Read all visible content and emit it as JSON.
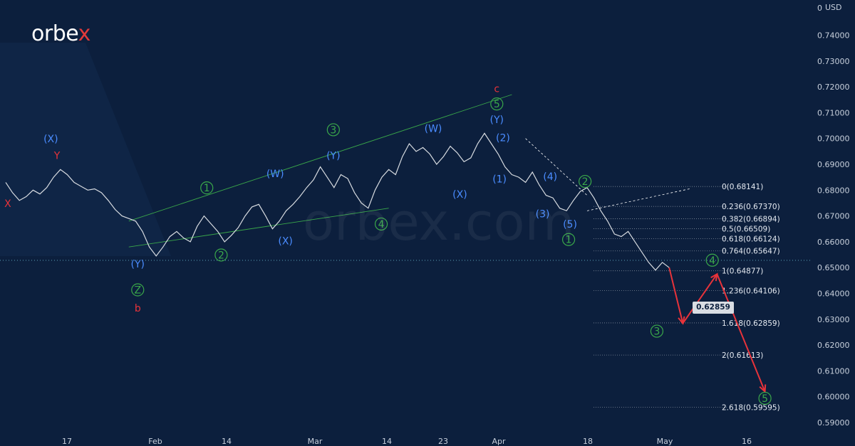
{
  "logo": {
    "prefix": "orbe",
    "accent": "x",
    "accent_color": "#e23a3a"
  },
  "watermark": "orbex.com",
  "price_tag": "0.62859",
  "chart_data": {
    "type": "line",
    "currency": "USD",
    "y_top_label": "0",
    "ylim": [
      0.585,
      0.75
    ],
    "y_ticks": [
      "0.74000",
      "0.73000",
      "0.72000",
      "0.71000",
      "0.70000",
      "0.69000",
      "0.68000",
      "0.67000",
      "0.66000",
      "0.65000",
      "0.64000",
      "0.63000",
      "0.62000",
      "0.61000",
      "0.60000",
      "0.59000"
    ],
    "x_ticks": [
      "17",
      "Feb",
      "14",
      "Mar",
      "14",
      "23",
      "Apr",
      "18",
      "May",
      "16"
    ],
    "current_price_line": 0.6528,
    "fibonacci_levels": [
      {
        "label": "0(0.68141)",
        "value": 0.68141
      },
      {
        "label": "0.236(0.67370)",
        "value": 0.6737
      },
      {
        "label": "0.382(0.66894)",
        "value": 0.66894
      },
      {
        "label": "0.5(0.66509)",
        "value": 0.66509
      },
      {
        "label": "0.618(0.66124)",
        "value": 0.66124
      },
      {
        "label": "0.764(0.65647)",
        "value": 0.65647
      },
      {
        "label": "1(0.64877)",
        "value": 0.64877
      },
      {
        "label": "1.236(0.64106)",
        "value": 0.64106
      },
      {
        "label": "1.618(0.62859)",
        "value": 0.62859
      },
      {
        "label": "2(0.61613)",
        "value": 0.61613
      },
      {
        "label": "2.618(0.59595)",
        "value": 0.59595
      }
    ],
    "price_path": [
      [
        0,
        0.683
      ],
      [
        1,
        0.679
      ],
      [
        2,
        0.676
      ],
      [
        3,
        0.6775
      ],
      [
        4,
        0.68
      ],
      [
        5,
        0.6785
      ],
      [
        6,
        0.681
      ],
      [
        7,
        0.685
      ],
      [
        8,
        0.688
      ],
      [
        9,
        0.686
      ],
      [
        10,
        0.683
      ],
      [
        11,
        0.6815
      ],
      [
        12,
        0.68
      ],
      [
        13,
        0.6805
      ],
      [
        14,
        0.679
      ],
      [
        15,
        0.676
      ],
      [
        16,
        0.6725
      ],
      [
        17,
        0.67
      ],
      [
        18,
        0.669
      ],
      [
        19,
        0.668
      ],
      [
        20,
        0.664
      ],
      [
        21,
        0.658
      ],
      [
        22,
        0.6545
      ],
      [
        23,
        0.658
      ],
      [
        24,
        0.662
      ],
      [
        25,
        0.664
      ],
      [
        26,
        0.6615
      ],
      [
        27,
        0.66
      ],
      [
        28,
        0.666
      ],
      [
        29,
        0.67
      ],
      [
        30,
        0.667
      ],
      [
        31,
        0.664
      ],
      [
        32,
        0.66
      ],
      [
        33,
        0.6625
      ],
      [
        34,
        0.6655
      ],
      [
        35,
        0.67
      ],
      [
        36,
        0.6735
      ],
      [
        37,
        0.6745
      ],
      [
        38,
        0.67
      ],
      [
        39,
        0.665
      ],
      [
        40,
        0.668
      ],
      [
        41,
        0.672
      ],
      [
        42,
        0.6745
      ],
      [
        43,
        0.6775
      ],
      [
        44,
        0.681
      ],
      [
        45,
        0.684
      ],
      [
        46,
        0.689
      ],
      [
        47,
        0.685
      ],
      [
        48,
        0.681
      ],
      [
        49,
        0.686
      ],
      [
        50,
        0.6845
      ],
      [
        51,
        0.679
      ],
      [
        52,
        0.675
      ],
      [
        53,
        0.673
      ],
      [
        54,
        0.68
      ],
      [
        55,
        0.685
      ],
      [
        56,
        0.688
      ],
      [
        57,
        0.686
      ],
      [
        58,
        0.693
      ],
      [
        59,
        0.698
      ],
      [
        60,
        0.695
      ],
      [
        61,
        0.6965
      ],
      [
        62,
        0.694
      ],
      [
        63,
        0.69
      ],
      [
        64,
        0.693
      ],
      [
        65,
        0.697
      ],
      [
        66,
        0.6945
      ],
      [
        67,
        0.691
      ],
      [
        68,
        0.6925
      ],
      [
        69,
        0.698
      ],
      [
        70,
        0.702
      ],
      [
        71,
        0.698
      ],
      [
        72,
        0.694
      ],
      [
        73,
        0.689
      ],
      [
        74,
        0.686
      ],
      [
        75,
        0.685
      ],
      [
        76,
        0.683
      ],
      [
        77,
        0.687
      ],
      [
        78,
        0.682
      ],
      [
        79,
        0.678
      ],
      [
        80,
        0.677
      ],
      [
        81,
        0.673
      ],
      [
        82,
        0.672
      ],
      [
        83,
        0.676
      ],
      [
        84,
        0.6795
      ],
      [
        85,
        0.681
      ],
      [
        86,
        0.677
      ],
      [
        87,
        0.672
      ],
      [
        88,
        0.668
      ],
      [
        89,
        0.663
      ],
      [
        90,
        0.662
      ],
      [
        91,
        0.664
      ],
      [
        92,
        0.66
      ],
      [
        93,
        0.656
      ],
      [
        94,
        0.652
      ],
      [
        95,
        0.649
      ],
      [
        96,
        0.652
      ],
      [
        97,
        0.65
      ]
    ],
    "trendlines": [
      {
        "from": [
          18,
          0.668
        ],
        "to": [
          74,
          0.717
        ],
        "color": "#3aa84a"
      },
      {
        "from": [
          18,
          0.658
        ],
        "to": [
          56,
          0.673
        ],
        "color": "#3aa84a"
      },
      {
        "from": [
          76,
          0.7
        ],
        "to": [
          85,
          0.678
        ],
        "color": "#ffffff",
        "dash": true
      },
      {
        "from": [
          85,
          0.672
        ],
        "to": [
          100,
          0.6805
        ],
        "color": "#ffffff",
        "dash": true
      }
    ],
    "projection": [
      [
        97,
        0.65
      ],
      [
        99,
        0.6284
      ],
      [
        104,
        0.6475
      ],
      [
        111,
        0.602
      ]
    ],
    "projection_color": "#e8333a",
    "wave_labels": [
      {
        "text": "X",
        "x": 0.3,
        "y": 0.6735,
        "color": "#e8333a"
      },
      {
        "text": "Y",
        "x": 7.5,
        "y": 0.692,
        "color": "#e8333a"
      },
      {
        "text": "(X)",
        "x": 6.6,
        "y": 0.6985,
        "color": "#4a8cff"
      },
      {
        "text": "(Y)",
        "x": 19.3,
        "y": 0.65,
        "color": "#4a8cff"
      },
      {
        "text": "Z",
        "x": 19.3,
        "y": 0.64,
        "color": "#3aa84a",
        "circle": true
      },
      {
        "text": "b",
        "x": 19.3,
        "y": 0.633,
        "color": "#e8333a"
      },
      {
        "text": "1",
        "x": 29.4,
        "y": 0.6795,
        "color": "#3aa84a",
        "circle": true
      },
      {
        "text": "2",
        "x": 31.5,
        "y": 0.6535,
        "color": "#3aa84a",
        "circle": true
      },
      {
        "text": "(W)",
        "x": 39.4,
        "y": 0.685,
        "color": "#4a8cff"
      },
      {
        "text": "(X)",
        "x": 40.9,
        "y": 0.659,
        "color": "#4a8cff"
      },
      {
        "text": "3",
        "x": 47.9,
        "y": 0.702,
        "color": "#3aa84a",
        "circle": true
      },
      {
        "text": "(Y)",
        "x": 47.9,
        "y": 0.692,
        "color": "#4a8cff"
      },
      {
        "text": "4",
        "x": 54.9,
        "y": 0.6655,
        "color": "#3aa84a",
        "circle": true
      },
      {
        "text": "(W)",
        "x": 62.5,
        "y": 0.7025,
        "color": "#4a8cff"
      },
      {
        "text": "(X)",
        "x": 66.4,
        "y": 0.677,
        "color": "#4a8cff"
      },
      {
        "text": "c",
        "x": 71.8,
        "y": 0.718,
        "color": "#e8333a"
      },
      {
        "text": "5",
        "x": 71.8,
        "y": 0.712,
        "color": "#3aa84a",
        "circle": true
      },
      {
        "text": "(Y)",
        "x": 71.8,
        "y": 0.706,
        "color": "#4a8cff"
      },
      {
        "text": "(2)",
        "x": 72.7,
        "y": 0.699,
        "color": "#4a8cff"
      },
      {
        "text": "(1)",
        "x": 72.2,
        "y": 0.683,
        "color": "#4a8cff"
      },
      {
        "text": "(4)",
        "x": 79.6,
        "y": 0.684,
        "color": "#4a8cff"
      },
      {
        "text": "(3)",
        "x": 78.5,
        "y": 0.6695,
        "color": "#4a8cff"
      },
      {
        "text": "2",
        "x": 84.7,
        "y": 0.682,
        "color": "#3aa84a",
        "circle": true
      },
      {
        "text": "(5)",
        "x": 82.5,
        "y": 0.6655,
        "color": "#4a8cff"
      },
      {
        "text": "1",
        "x": 82.3,
        "y": 0.6595,
        "color": "#3aa84a",
        "circle": true
      },
      {
        "text": "4",
        "x": 103.3,
        "y": 0.6515,
        "color": "#3aa84a",
        "circle": true
      },
      {
        "text": "3",
        "x": 95.2,
        "y": 0.624,
        "color": "#3aa84a",
        "circle": true
      },
      {
        "text": "5",
        "x": 111.0,
        "y": 0.598,
        "color": "#3aa84a",
        "circle": true
      }
    ]
  }
}
